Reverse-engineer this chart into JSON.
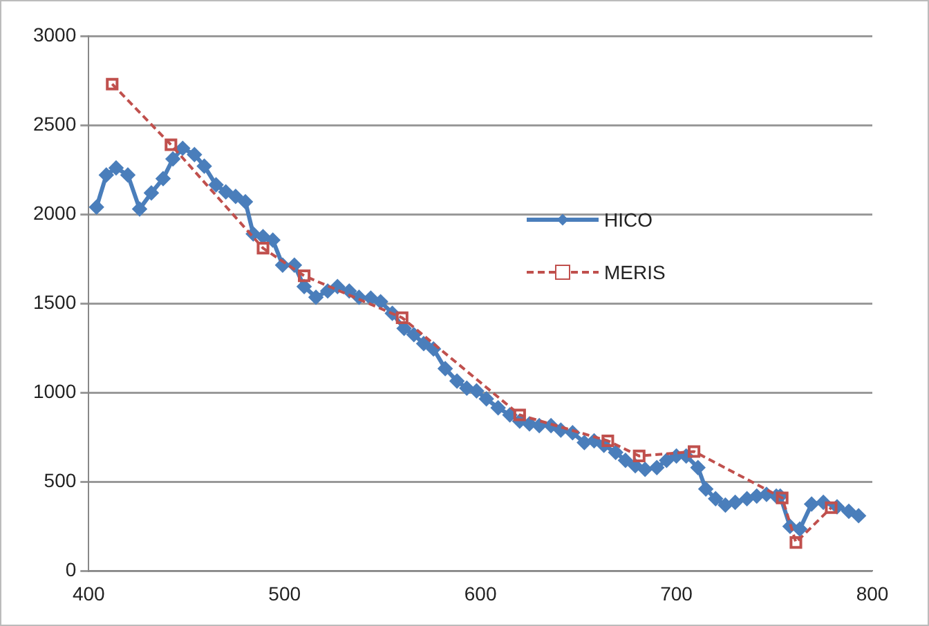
{
  "chart_data": {
    "type": "line",
    "xlim": [
      400,
      800
    ],
    "xticks": [
      400,
      500,
      600,
      700,
      800
    ],
    "ylim": [
      0,
      3000
    ],
    "yticks": [
      0,
      500,
      1000,
      1500,
      2000,
      2500,
      3000
    ],
    "grid": "y",
    "legend": "right",
    "series": [
      {
        "name": "HICO",
        "color": "#4a7ebb",
        "marker": "diamond",
        "line_style": "solid",
        "x": [
          404,
          409,
          414,
          420,
          426,
          432,
          438,
          443,
          448,
          454,
          459,
          465,
          470,
          475,
          480,
          484,
          489,
          494,
          499,
          505,
          510,
          516,
          522,
          527,
          533,
          538,
          544,
          549,
          555,
          561,
          566,
          571,
          576,
          582,
          588,
          593,
          598,
          603,
          609,
          615,
          620,
          625,
          630,
          636,
          641,
          647,
          653,
          658,
          663,
          669,
          674,
          679,
          684,
          690,
          695,
          700,
          705,
          711,
          715,
          720,
          725,
          730,
          736,
          741,
          746,
          751,
          753,
          758,
          763,
          769,
          775,
          782,
          788,
          793
        ],
        "values": [
          2040,
          2220,
          2260,
          2220,
          2030,
          2120,
          2200,
          2310,
          2370,
          2335,
          2270,
          2165,
          2125,
          2100,
          2070,
          1890,
          1875,
          1855,
          1715,
          1715,
          1595,
          1535,
          1570,
          1595,
          1570,
          1535,
          1530,
          1510,
          1445,
          1360,
          1325,
          1275,
          1245,
          1135,
          1065,
          1025,
          1010,
          965,
          915,
          875,
          840,
          825,
          815,
          815,
          790,
          775,
          720,
          730,
          705,
          665,
          620,
          590,
          570,
          580,
          620,
          645,
          645,
          580,
          460,
          405,
          370,
          385,
          405,
          420,
          430,
          420,
          420,
          250,
          235,
          375,
          385,
          360,
          335,
          310
        ]
      },
      {
        "name": "MERIS",
        "color": "#c0504d",
        "marker": "square",
        "line_style": "dashed",
        "x": [
          412,
          442,
          489,
          510,
          560,
          620,
          665,
          681,
          709,
          754,
          761,
          779
        ],
        "values": [
          2730,
          2390,
          1810,
          1655,
          1420,
          875,
          730,
          645,
          670,
          410,
          160,
          355
        ]
      }
    ]
  }
}
